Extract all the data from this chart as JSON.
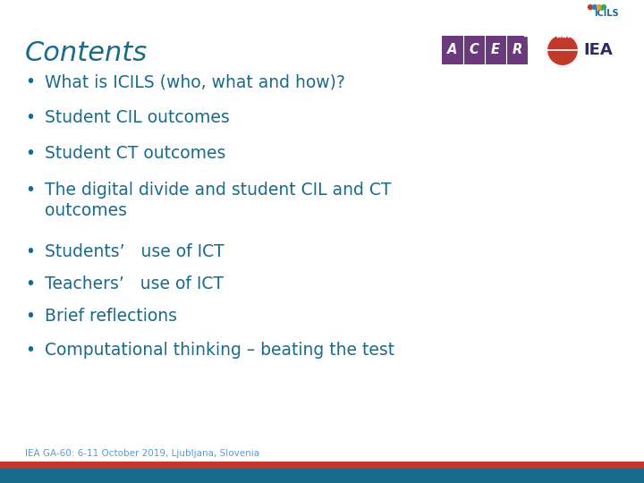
{
  "title": "Contents",
  "title_color": "#1A6B8A",
  "title_fontsize": 22,
  "background_color": "#FFFFFF",
  "bullet_color": "#1A6B8A",
  "bullet_fontsize": 13.5,
  "bullets": [
    "What is ICILS (who, what and how)?",
    "Student CIL outcomes",
    "Student CT outcomes",
    "The digital divide and student CIL and CT\noutcomes",
    "Students’   use of ICT",
    "Teachers’   use of ICT",
    "Brief reflections",
    "Computational thinking – beating the test"
  ],
  "bullet_has_wrap": [
    false,
    false,
    false,
    true,
    false,
    false,
    false,
    false
  ],
  "footer_text": "IEA GA-60: 6-11 October 2019, Ljubljana, Slovenia",
  "footer_color": "#5B9BD5",
  "footer_fontsize": 7.5,
  "bottom_blue_color": "#1A6B8A",
  "bottom_red_color": "#C0392B",
  "acer_bg_color": "#6B3A7D",
  "iea_red_color": "#C0392B",
  "iea_dark_color": "#5A1A1A"
}
